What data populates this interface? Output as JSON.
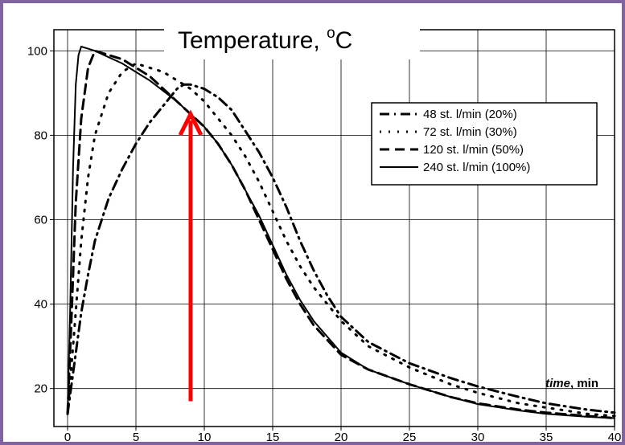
{
  "chart_data": {
    "type": "line",
    "title": "Temperature, ",
    "title_sup": "o",
    "title_unit": "C",
    "xlabel_italic": "time",
    "xlabel_rest": ", min",
    "xlim": [
      -1,
      40
    ],
    "ylim": [
      11,
      105
    ],
    "xticks": [
      0,
      5,
      10,
      15,
      20,
      25,
      30,
      35,
      40
    ],
    "yticks": [
      20,
      40,
      60,
      80,
      100
    ],
    "grid": true,
    "legend_position": "top-right",
    "series": [
      {
        "name": "48 st. l/min (20%)",
        "style": "dashdot",
        "x": [
          0,
          0.5,
          1,
          1.5,
          2,
          3,
          4,
          5,
          6,
          7,
          8,
          8.5,
          9,
          10,
          11,
          12,
          13,
          14,
          15,
          16,
          17,
          18,
          19,
          20,
          22,
          25,
          28,
          30,
          33,
          35,
          38,
          40
        ],
        "y": [
          14,
          26,
          38,
          47,
          55,
          65,
          72,
          78,
          83,
          87,
          91,
          92,
          92,
          91,
          89,
          86,
          81,
          76,
          70,
          63,
          55,
          48,
          42,
          37,
          31,
          26,
          22.5,
          20.5,
          18,
          16.5,
          15,
          14.3
        ]
      },
      {
        "name": "72 st. l/min (30%)",
        "style": "dotted",
        "x": [
          0,
          0.5,
          1,
          1.5,
          2,
          3,
          4,
          5,
          6,
          7,
          8,
          9,
          10,
          11,
          12,
          13,
          14,
          15,
          16,
          17,
          18,
          20,
          22,
          25,
          28,
          30,
          33,
          35,
          38,
          40
        ],
        "y": [
          14,
          34,
          55,
          70,
          80,
          90,
          95,
          97,
          96,
          95,
          93,
          91,
          88,
          84,
          80,
          75,
          69,
          62,
          55,
          49,
          44,
          36,
          30,
          25,
          21,
          19,
          16.5,
          15.5,
          14,
          13.5
        ]
      },
      {
        "name": "120 st. l/min (50%)",
        "style": "dashed",
        "x": [
          0,
          0.3,
          0.6,
          1,
          1.5,
          2,
          3,
          4,
          5,
          6,
          7,
          8,
          9,
          10,
          11,
          12,
          13,
          14,
          15,
          16,
          17,
          18,
          20,
          22,
          25,
          28,
          30,
          33,
          35,
          38,
          40
        ],
        "y": [
          14,
          38,
          64,
          84,
          96,
          100,
          99,
          98,
          96,
          94,
          91,
          88,
          85,
          82,
          78,
          73,
          67,
          60,
          53,
          46,
          40,
          35,
          28,
          24.5,
          21,
          18,
          16.5,
          15,
          14.3,
          13.5,
          13
        ]
      },
      {
        "name": "240 st. l/min (100%)",
        "style": "solid",
        "x": [
          0,
          0.2,
          0.4,
          0.6,
          0.8,
          1,
          1.5,
          2,
          3,
          4,
          5,
          6,
          7,
          8,
          9,
          10,
          11,
          12,
          13,
          14,
          15,
          16,
          17,
          18,
          20,
          22,
          25,
          28,
          30,
          33,
          35,
          38,
          40
        ],
        "y": [
          14,
          40,
          72,
          92,
          99,
          101,
          100.5,
          100,
          98.5,
          97,
          95,
          93,
          90.5,
          88,
          85,
          82,
          78,
          73,
          67,
          61,
          54,
          47,
          41,
          36,
          28.5,
          24.5,
          21,
          18,
          16.3,
          14.8,
          14,
          13.3,
          13
        ]
      }
    ],
    "annotation_arrow": {
      "color": "#ff0000",
      "x": 9,
      "y_from": 17,
      "y_to": 85
    }
  }
}
